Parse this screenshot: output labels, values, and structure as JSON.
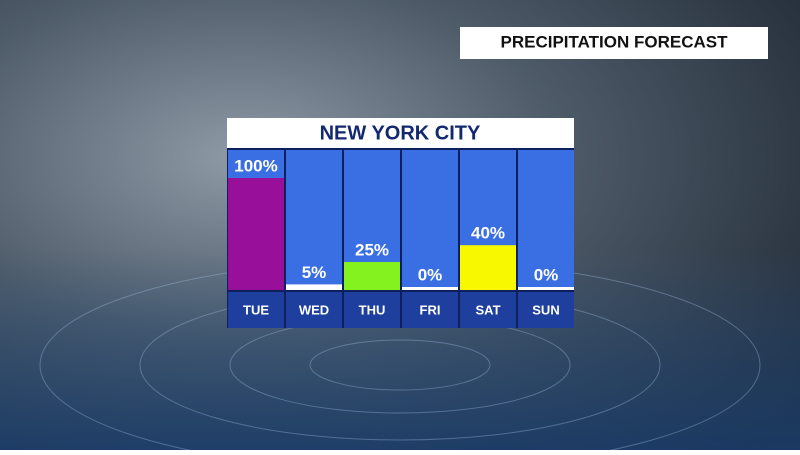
{
  "header": {
    "title": "PRECIPITATION FORECAST"
  },
  "chart_data": {
    "type": "bar",
    "title": "NEW YORK CITY",
    "categories": [
      "TUE",
      "WED",
      "THU",
      "FRI",
      "SAT",
      "SUN"
    ],
    "values": [
      100,
      5,
      25,
      0,
      40,
      0
    ],
    "value_labels": [
      "100%",
      "5%",
      "25%",
      "0%",
      "40%",
      "0%"
    ],
    "colors": [
      "#98109a",
      "#ffffff",
      "#84f21e",
      "#ffffff",
      "#f8f800",
      "#ffffff"
    ],
    "ylim": [
      0,
      100
    ]
  }
}
